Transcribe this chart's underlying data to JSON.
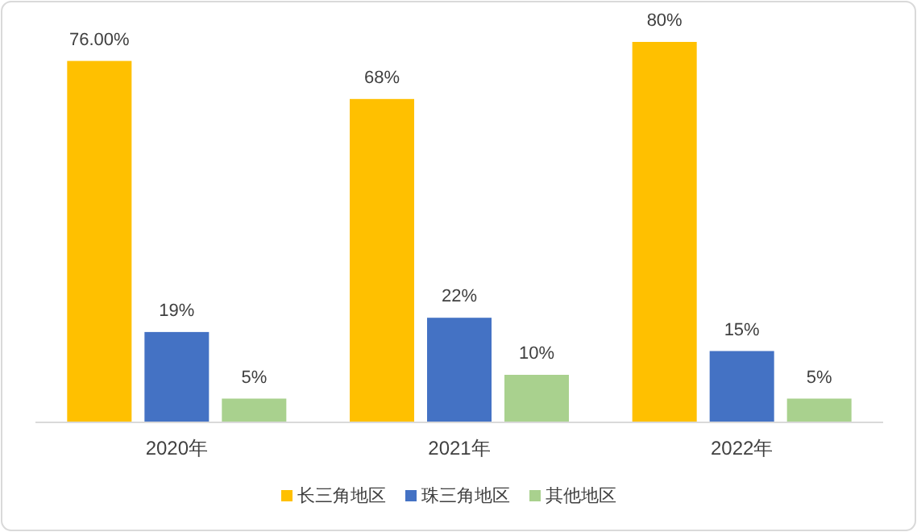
{
  "chart_data": {
    "type": "bar",
    "categories": [
      "2020年",
      "2021年",
      "2022年"
    ],
    "series": [
      {
        "name": "长三角地区",
        "color": "#ffc000",
        "values": [
          76,
          68,
          80
        ],
        "value_labels": [
          "76.00%",
          "68%",
          "80%"
        ]
      },
      {
        "name": "珠三角地区",
        "color": "#4472c4",
        "values": [
          19,
          22,
          15
        ],
        "value_labels": [
          "19%",
          "22%",
          "15%"
        ]
      },
      {
        "name": "其他地区",
        "color": "#a9d18e",
        "values": [
          5,
          10,
          5
        ],
        "value_labels": [
          "5%",
          "10%",
          "5%"
        ]
      }
    ],
    "legend": "bottom"
  }
}
